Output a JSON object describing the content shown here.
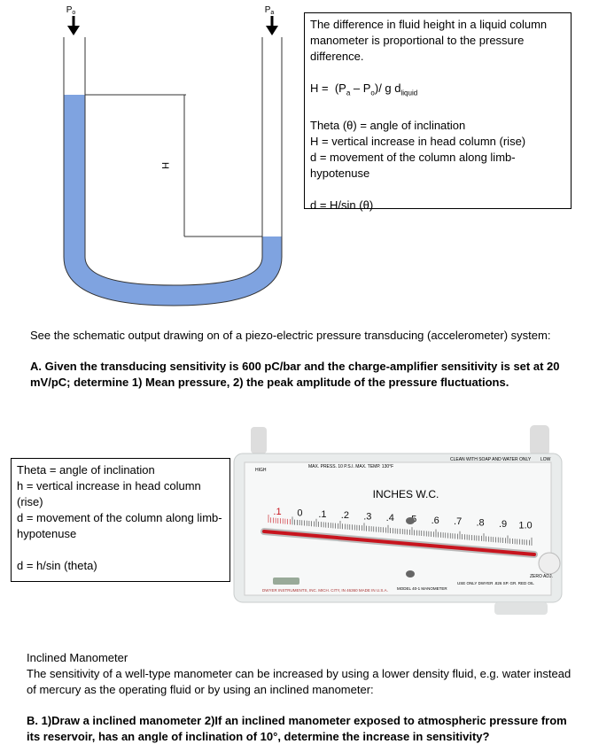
{
  "u_tube": {
    "label_left_p": "P",
    "label_left_sub": "o",
    "label_right_p": "P",
    "label_right_sub": "a",
    "height_label": "H"
  },
  "box1": {
    "intro": "The difference in fluid height in a liquid column manometer is proportional to the pressure difference.",
    "formula": {
      "lhs": "H =",
      "p1": "(P",
      "p1_sub": "a",
      "minus": " – P",
      "p2_sub": "o",
      "rest": ")/ g d",
      "rest_sub": "liquid"
    },
    "lines": [
      "Theta (θ)  = angle of inclination",
      "H = vertical increase in head column (rise)",
      "d = movement of the column along limb-hypotenuse"
    ],
    "equation": "d = H/sin (θ)"
  },
  "section_a": {
    "intro": "See the schematic output drawing on of a piezo-electric pressure transducing (accelerometer) system:",
    "question": "A. Given the transducing sensitivity is 600  pC/bar and the charge-amplifier sensitivity is set at 20 mV/pC; determine 1) Mean pressure, 2) the peak amplitude of the pressure fluctuations."
  },
  "box2": {
    "lines": [
      "Theta = angle of inclination",
      "h = vertical increase in head column (rise)",
      "d = movement of the column along limb-hypotenuse"
    ],
    "equation": "d = h/sin (theta)"
  },
  "photo": {
    "high": "HIGH",
    "max": "MAX. PRESS. 10 P.S.I.   MAX. TEMP. 130°F",
    "clean": "CLEAN WITH SOAP AND WATER ONLY",
    "low": "LOW",
    "units": "INCHES  W.C.",
    "scale": [
      ".1",
      "0",
      ".1",
      ".2",
      ".3",
      ".4",
      ".5",
      ".6",
      ".7",
      ".8",
      ".9",
      "1.0"
    ],
    "zero": "ZERO ADJ.",
    "maker": "DWYER INSTRUMENTS, INC.  MICH. CITY, IN 46360 MADE IN U.S.A.",
    "model": "MODEL 40-1 MANOMETER",
    "oil": "USE ONLY DWYER .826 SP. GR. RED OIL"
  },
  "section_b": {
    "heading": "Inclined Manometer",
    "text": "The sensitivity of a well-type manometer can be increased by using a lower density fluid, e.g. water instead of mercury as the operating fluid or by using an inclined manometer:",
    "question": "B. 1)Draw a inclined manometer 2)If an inclined manometer exposed to atmospheric pressure from its reservoir, has an angle of  inclination of 10°, determine the increase in sensitivity?"
  }
}
